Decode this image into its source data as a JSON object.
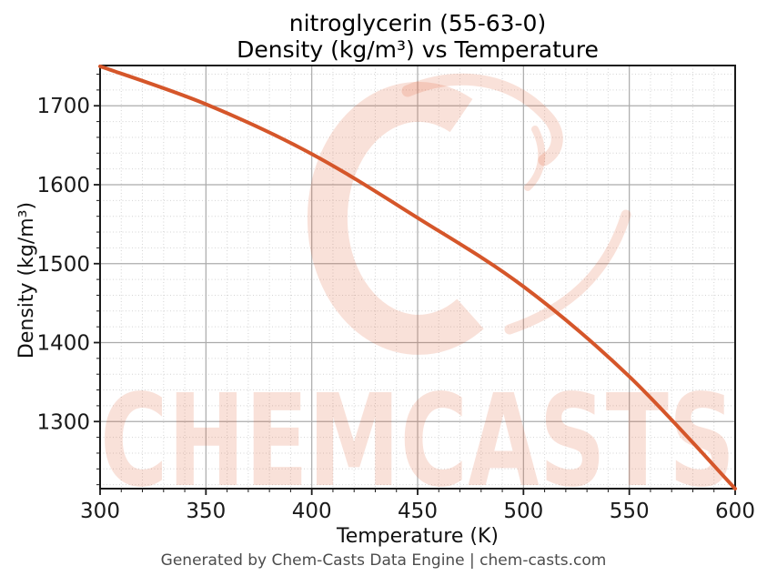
{
  "title": {
    "line1": "nitroglycerin (55-63-0)",
    "line2": "Density (kg/m³) vs Temperature"
  },
  "footer": "Generated by Chem-Casts Data Engine | chem-casts.com",
  "watermark": {
    "text": "CHEMCASTS",
    "logo": "chemcasts-c-swirl"
  },
  "chart_data": {
    "type": "line",
    "title": "nitroglycerin (55-63-0) — Density (kg/m³) vs Temperature",
    "xlabel": "Temperature (K)",
    "ylabel": "Density (kg/m³)",
    "x": [
      300,
      350,
      400,
      450,
      500,
      550,
      600
    ],
    "y": [
      1750,
      1702,
      1639,
      1558,
      1471,
      1357,
      1215
    ],
    "xlim": [
      300,
      600
    ],
    "ylim": [
      1215,
      1751
    ],
    "x_major_ticks": [
      300,
      350,
      400,
      450,
      500,
      550,
      600
    ],
    "y_major_ticks": [
      1300,
      1400,
      1500,
      1600,
      1700
    ],
    "x_minor_step": 10,
    "y_minor_step": 20,
    "grid": "both",
    "legend": "none",
    "line_color": "#d5562a",
    "line_width": 4
  },
  "colors": {
    "watermark": "rgba(224,87,42,0.18)",
    "grid_major": "#ababab",
    "grid_minor": "#d4d4d4",
    "spine": "#1a1a1a",
    "tick_label": "#1a1a1a",
    "title_text": "#000000",
    "footer_text": "#4c4c4c"
  }
}
